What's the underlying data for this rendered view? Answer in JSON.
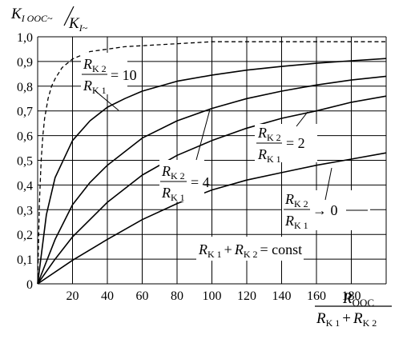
{
  "chart_data": {
    "type": "line",
    "y_title": {
      "main": "K",
      "main_sub": "I OOC~",
      "div": "K",
      "div_sub": "I~"
    },
    "x_title": {
      "num": "R",
      "num_sub": "OOC",
      "den_a": "R",
      "den_a_sub": "K 1",
      "plus": "+",
      "den_b": "R",
      "den_b_sub": "K 2"
    },
    "xlim": [
      0,
      200
    ],
    "ylim": [
      0,
      1.0
    ],
    "x_ticks": [
      0,
      20,
      40,
      60,
      80,
      100,
      120,
      140,
      160,
      180,
      200
    ],
    "x_tick_labels": [
      "20",
      "40",
      "60",
      "80",
      "100",
      "120",
      "140",
      "160",
      "180"
    ],
    "y_ticks": [
      0,
      0.1,
      0.2,
      0.3,
      0.4,
      0.5,
      0.6,
      0.7,
      0.8,
      0.9,
      1.0
    ],
    "y_tick_labels": [
      "0",
      "0,1",
      "0,2",
      "0,3",
      "0,4",
      "0,5",
      "0,6",
      "0,7",
      "0,8",
      "0,9",
      "1,0"
    ],
    "grid": true,
    "series": [
      {
        "name": "dashed",
        "style": "dashed",
        "x": [
          0,
          1,
          2,
          3,
          4,
          6,
          8,
          10,
          14,
          20,
          30,
          50,
          100,
          200
        ],
        "y": [
          0,
          0.33,
          0.5,
          0.6,
          0.67,
          0.75,
          0.8,
          0.83,
          0.875,
          0.91,
          0.94,
          0.96,
          0.98,
          0.98
        ]
      },
      {
        "name": "ratio-10",
        "style": "solid",
        "x": [
          0,
          5,
          10,
          20,
          30,
          40,
          50,
          60,
          80,
          100,
          120,
          140,
          160,
          180,
          200
        ],
        "y": [
          0,
          0.28,
          0.43,
          0.58,
          0.66,
          0.715,
          0.75,
          0.78,
          0.82,
          0.845,
          0.865,
          0.88,
          0.893,
          0.903,
          0.912
        ]
      },
      {
        "name": "ratio-4",
        "style": "solid",
        "x": [
          0,
          10,
          20,
          30,
          40,
          60,
          80,
          100,
          120,
          140,
          160,
          180,
          200
        ],
        "y": [
          0,
          0.18,
          0.32,
          0.41,
          0.48,
          0.59,
          0.66,
          0.71,
          0.75,
          0.78,
          0.805,
          0.825,
          0.84
        ]
      },
      {
        "name": "ratio-2",
        "style": "solid",
        "x": [
          0,
          10,
          20,
          40,
          60,
          80,
          100,
          120,
          140,
          160,
          180,
          200
        ],
        "y": [
          0,
          0.1,
          0.19,
          0.33,
          0.44,
          0.52,
          0.58,
          0.63,
          0.67,
          0.7,
          0.735,
          0.76
        ]
      },
      {
        "name": "ratio-0",
        "style": "solid",
        "x": [
          0,
          20,
          40,
          60,
          80,
          100,
          120,
          140,
          160,
          180,
          200
        ],
        "y": [
          0,
          0.095,
          0.18,
          0.26,
          0.325,
          0.38,
          0.42,
          0.45,
          0.48,
          0.505,
          0.53
        ]
      }
    ],
    "annotations": {
      "ratio_10": {
        "num": "R",
        "num_sub": "K 2",
        "den": "R",
        "den_sub": "K 1",
        "rel": "= 10"
      },
      "ratio_4": {
        "num": "R",
        "num_sub": "K 2",
        "den": "R",
        "den_sub": "K 1",
        "rel": "= 4"
      },
      "ratio_2": {
        "num": "R",
        "num_sub": "K 2",
        "den": "R",
        "den_sub": "K 1",
        "rel": "= 2"
      },
      "ratio_0": {
        "num": "R",
        "num_sub": "K 2",
        "den": "R",
        "den_sub": "K 1",
        "rel": "→ 0"
      },
      "const": {
        "a": "R",
        "a_sub": "K 1",
        "plus": "+",
        "b": "R",
        "b_sub": "K 2",
        "rel": "= const"
      }
    }
  }
}
